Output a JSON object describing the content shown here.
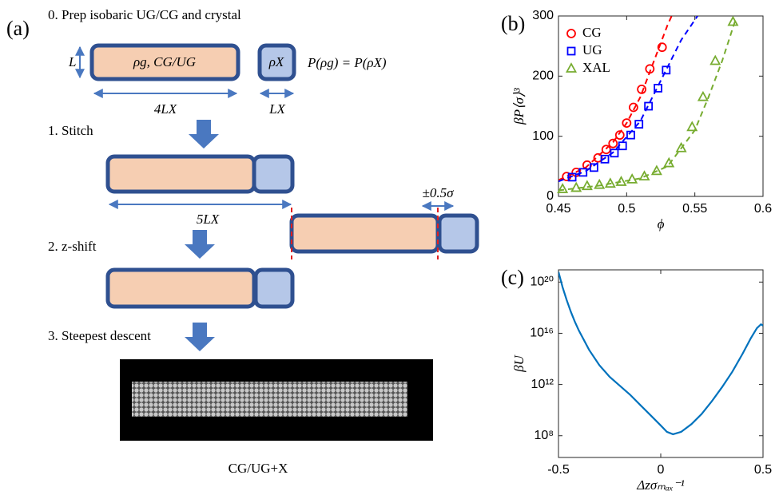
{
  "panel_a": {
    "label": "(a)",
    "steps": [
      "0. Prep isobaric UG/CG and crystal",
      "1. Stitch",
      "2. z-shift",
      "3. Steepest descent"
    ],
    "box_labels": {
      "gas": "ρg, CG/UG",
      "crystal": "ρX"
    },
    "equation": "P(ρg) = P(ρX)",
    "dimensions": {
      "height": "L",
      "gas_length": "4LX",
      "crystal_length": "LX",
      "stitched_length": "5LX",
      "shift": "±0.5σ"
    },
    "caption": "CG/UG+X"
  },
  "chart_data": [
    {
      "type": "scatter",
      "panel_label": "(b)",
      "xlabel": "ϕ",
      "ylabel": "βP⟨σ⟩³",
      "xlim": [
        0.45,
        0.6
      ],
      "xticks": [
        0.45,
        0.5,
        0.55,
        0.6
      ],
      "ylim": [
        0,
        300
      ],
      "yticks": [
        0,
        100,
        200,
        300
      ],
      "legend": "upper left",
      "series": [
        {
          "name": "CG",
          "color": "#ff0000",
          "marker": "circle",
          "x": [
            0.456,
            0.463,
            0.471,
            0.479,
            0.485,
            0.49,
            0.495,
            0.5,
            0.505,
            0.511,
            0.517,
            0.526
          ],
          "values": [
            33,
            40,
            52,
            64,
            78,
            88,
            102,
            122,
            148,
            178,
            212,
            248
          ],
          "fit_x": [
            0.45,
            0.47,
            0.49,
            0.5,
            0.51,
            0.52,
            0.53,
            0.533
          ],
          "fit_values": [
            27,
            48,
            90,
            122,
            165,
            225,
            285,
            300
          ]
        },
        {
          "name": "UG",
          "color": "#0000ff",
          "marker": "square",
          "x": [
            0.46,
            0.468,
            0.476,
            0.484,
            0.491,
            0.497,
            0.503,
            0.509,
            0.516,
            0.523,
            0.529
          ],
          "values": [
            32,
            40,
            48,
            62,
            72,
            84,
            102,
            120,
            150,
            180,
            210
          ],
          "fit_x": [
            0.45,
            0.47,
            0.49,
            0.51,
            0.53,
            0.54,
            0.552
          ],
          "fit_values": [
            25,
            42,
            73,
            125,
            215,
            260,
            300
          ]
        },
        {
          "name": "XAL",
          "color": "#77ac30",
          "marker": "triangle",
          "x": [
            0.453,
            0.463,
            0.471,
            0.48,
            0.488,
            0.496,
            0.504,
            0.513,
            0.522,
            0.531,
            0.54,
            0.548,
            0.556,
            0.565,
            0.578
          ],
          "values": [
            12,
            14,
            17,
            19,
            21,
            24,
            28,
            33,
            42,
            55,
            80,
            115,
            165,
            225,
            290
          ],
          "fit_x": [
            0.45,
            0.48,
            0.51,
            0.53,
            0.55,
            0.56,
            0.57,
            0.58
          ],
          "fit_values": [
            10,
            18,
            30,
            50,
            110,
            165,
            225,
            295
          ]
        }
      ]
    },
    {
      "type": "line",
      "panel_label": "(c)",
      "xlabel": "Δzσₘₐₓ⁻¹",
      "ylabel": "βU",
      "log_y": true,
      "xlim": [
        -0.5,
        0.5
      ],
      "xticks": [
        -0.5,
        0,
        0.5
      ],
      "ylim": [
        2000000.0,
        9e+20
      ],
      "yticks": [
        {
          "value": 100000000.0,
          "label": "10⁸"
        },
        {
          "value": 1000000000000.0,
          "label": "10¹²"
        },
        {
          "value": 1e+16,
          "label": "10¹⁶"
        },
        {
          "value": 1e+20,
          "label": "10²⁰"
        }
      ],
      "series": [
        {
          "color": "#0072bd",
          "x": [
            -0.5,
            -0.48,
            -0.46,
            -0.44,
            -0.42,
            -0.4,
            -0.35,
            -0.3,
            -0.25,
            -0.2,
            -0.15,
            -0.1,
            -0.05,
            0,
            0.03,
            0.06,
            0.1,
            0.15,
            0.2,
            0.25,
            0.3,
            0.35,
            0.4,
            0.44,
            0.47,
            0.49,
            0.5
          ],
          "values": [
            6.3e+20,
            4e+19,
            4e+18,
            5e+17,
            8e+16,
            1.6e+16,
            500000000000000.0,
            32000000000000.0,
            4000000000000.0,
            800000000000.0,
            160000000000.0,
            25000000000.0,
            4000000000.0,
            630000000.0,
            200000000.0,
            130000000.0,
            200000000.0,
            800000000.0,
            5000000000.0,
            50000000000.0,
            630000000000.0,
            10000000000000.0,
            250000000000000.0,
            4000000000000000.0,
            2.5e+16,
            5e+16,
            4e+16
          ]
        }
      ]
    }
  ]
}
